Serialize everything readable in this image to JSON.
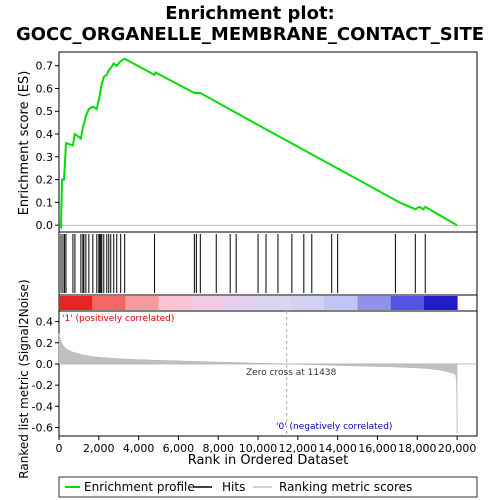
{
  "chart_data": {
    "type": "line",
    "title_line1": "Enrichment plot:",
    "title_line2": "GOCC_ORGANELLE_MEMBRANE_CONTACT_SITE",
    "xlabel": "Rank in Ordered Dataset",
    "ylabel_top": "Enrichment score (ES)",
    "ylabel_bottom": "Ranked list metric (Signal2Noise)",
    "xlim": [
      0,
      21000
    ],
    "x_ticks": [
      0,
      2000,
      4000,
      6000,
      8000,
      10000,
      12000,
      14000,
      16000,
      18000,
      20000
    ],
    "x_tick_labels": [
      "0",
      "2,000",
      "4,000",
      "6,000",
      "8,000",
      "10,000",
      "12,000",
      "14,000",
      "16,000",
      "18,000",
      "20,000"
    ],
    "es_ylim": [
      -0.03,
      0.76
    ],
    "es_ticks": [
      0.0,
      0.1,
      0.2,
      0.3,
      0.4,
      0.5,
      0.6,
      0.7
    ],
    "es_tick_labels": [
      "0.0",
      "0.1",
      "0.2",
      "0.3",
      "0.4",
      "0.5",
      "0.6",
      "0.7"
    ],
    "metric_ylim": [
      -0.68,
      0.5
    ],
    "metric_ticks": [
      0.4,
      0.2,
      0.0,
      -0.2,
      -0.4,
      -0.6
    ],
    "metric_tick_labels": [
      "0.4",
      "0.2",
      "0.0",
      "-0.2",
      "-0.4",
      "-0.6"
    ],
    "zero_cross_rank": 11438,
    "zero_cross_label": "Zero cross at 11438",
    "pos_label": "'1' (positively correlated)",
    "neg_label": "'0' (negatively correlated)",
    "colors": {
      "es_line": "#00dd00",
      "pos": "#dd0000",
      "neg": "#0000cc",
      "metric_fill": "#c0c0c0",
      "hit": "#000000"
    },
    "enrichment_profile": {
      "x": [
        0,
        100,
        150,
        250,
        300,
        350,
        700,
        800,
        1100,
        1200,
        1300,
        1350,
        1500,
        1700,
        1900,
        2000,
        2050,
        2100,
        2150,
        2250,
        2400,
        2500,
        2600,
        2750,
        2900,
        3100,
        3300,
        4800,
        4850,
        6800,
        6900,
        7100,
        10000,
        16900,
        17100,
        17900,
        18100,
        18300,
        18400,
        20000
      ],
      "y": [
        0.0,
        -0.01,
        0.2,
        0.2,
        0.28,
        0.36,
        0.35,
        0.4,
        0.38,
        0.43,
        0.46,
        0.48,
        0.51,
        0.52,
        0.51,
        0.55,
        0.57,
        0.6,
        0.62,
        0.65,
        0.66,
        0.68,
        0.69,
        0.71,
        0.7,
        0.72,
        0.73,
        0.66,
        0.67,
        0.58,
        0.58,
        0.58,
        0.44,
        0.11,
        0.1,
        0.07,
        0.08,
        0.07,
        0.08,
        0.0
      ]
    },
    "hits": [
      100,
      200,
      280,
      350,
      700,
      800,
      1100,
      1200,
      1250,
      1350,
      1500,
      1700,
      1900,
      2000,
      2050,
      2100,
      2150,
      2250,
      2400,
      2500,
      2600,
      2750,
      2900,
      3100,
      3300,
      4800,
      6800,
      6900,
      7100,
      7900,
      8600,
      8900,
      10000,
      10400,
      11000,
      11700,
      12300,
      12700,
      13700,
      14000,
      16900,
      17900,
      18400
    ],
    "series": [
      {
        "name": "Enrichment profile"
      },
      {
        "name": "Hits"
      },
      {
        "name": "Ranking metric scores"
      }
    ]
  }
}
